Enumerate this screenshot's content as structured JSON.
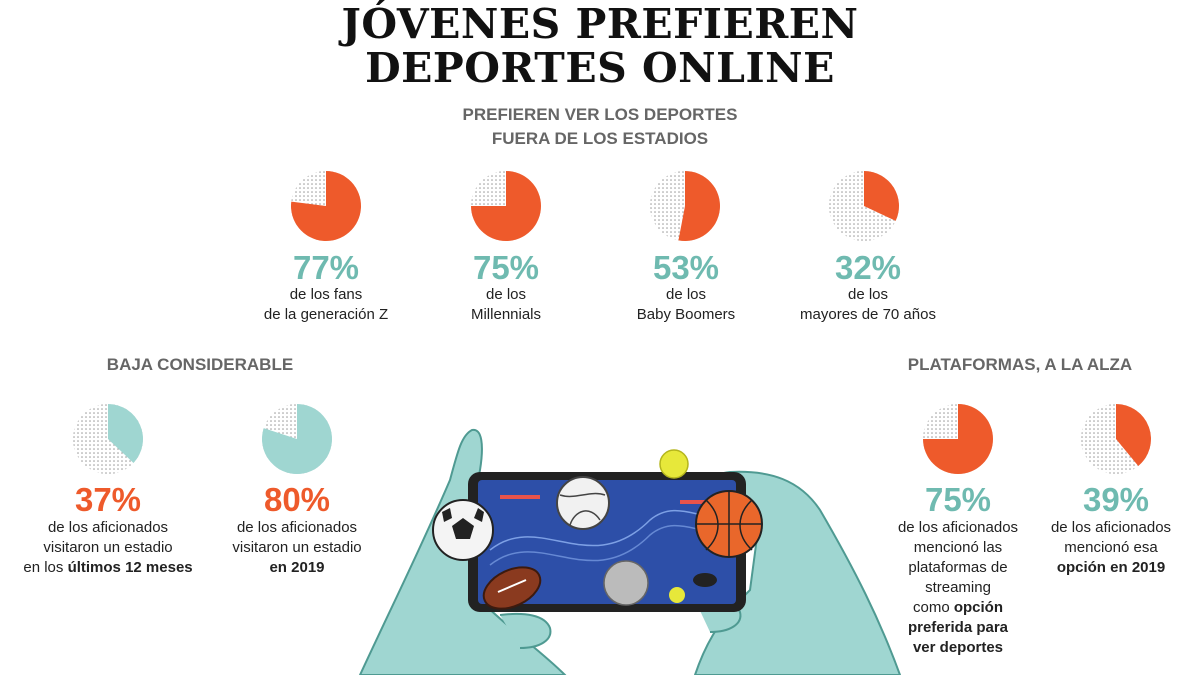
{
  "title_line1": "JÓVENES PREFIEREN",
  "title_line2": "DEPORTES ONLINE",
  "colors": {
    "orange": "#ee5a2b",
    "teal": "#6fbab0",
    "light_teal": "#9fd6d1",
    "dots": "#9a9a9a"
  },
  "chart_data": [
    {
      "type": "pie",
      "title_line1": "PREFIEREN VER LOS DEPORTES",
      "title_line2": "FUERA DE LOS ESTADIOS",
      "items": [
        {
          "value": 77,
          "label": "77%",
          "caption_line1": "de los fans",
          "caption_line2": "de la generación Z"
        },
        {
          "value": 75,
          "label": "75%",
          "caption_line1": "de los",
          "caption_line2": "Millennials"
        },
        {
          "value": 53,
          "label": "53%",
          "caption_line1": "de los",
          "caption_line2": "Baby Boomers"
        },
        {
          "value": 32,
          "label": "32%",
          "caption_line1": "de los",
          "caption_line2": "mayores de 70 años"
        }
      ]
    },
    {
      "type": "pie",
      "title": "BAJA CONSIDERABLE",
      "items": [
        {
          "value": 37,
          "label": "37%",
          "caption_line1": "de los aficionados",
          "caption_line2": "visitaron un estadio",
          "caption_line3_prefix": "en los ",
          "caption_line3_bold": "últimos 12 meses"
        },
        {
          "value": 80,
          "label": "80%",
          "caption_line1": "de los aficionados",
          "caption_line2": "visitaron un estadio",
          "caption_line3_bold": "en 2019"
        }
      ]
    },
    {
      "type": "pie",
      "title": "PLATAFORMAS, A LA ALZA",
      "items": [
        {
          "value": 75,
          "label": "75%",
          "caption_line1": "de los aficionados",
          "caption_line2": "mencionó las",
          "caption_line3": "plataformas de",
          "caption_line4": "streaming",
          "caption_line5_prefix": "como ",
          "caption_line5_bold": "opción",
          "caption_line6_bold": "preferida para",
          "caption_line7_bold": "ver deportes"
        },
        {
          "value": 39,
          "label": "39%",
          "caption_line1": "de los aficionados",
          "caption_line2": "mencionó esa",
          "caption_line3_bold": "opción en 2019"
        }
      ]
    }
  ]
}
